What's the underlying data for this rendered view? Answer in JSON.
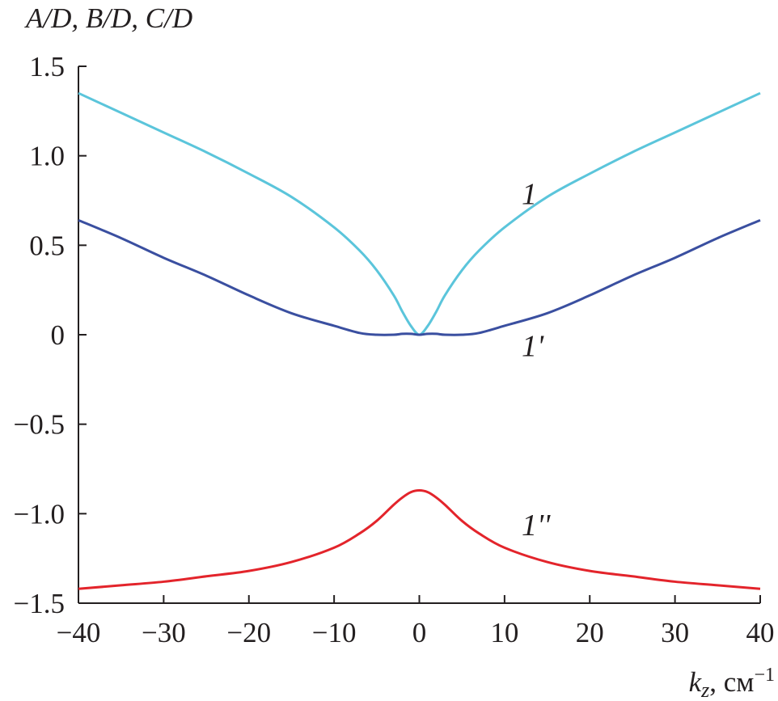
{
  "chart_data": {
    "type": "line",
    "title": "",
    "ylabel": "A/D, B/D, C/D",
    "xlabel": "k_z, см⁻¹",
    "xlabel_parts": {
      "var": "k",
      "sub": "z",
      "unit": ", см",
      "sup": "−1"
    },
    "xlim": [
      -40,
      40
    ],
    "ylim": [
      -1.5,
      1.5
    ],
    "xticks": [
      -40,
      -30,
      -20,
      -10,
      0,
      10,
      20,
      30,
      40
    ],
    "xtick_labels": [
      "−40",
      "−30",
      "−20",
      "−10",
      "0",
      "10",
      "20",
      "30",
      "40"
    ],
    "yticks": [
      -1.5,
      -1.0,
      -0.5,
      0,
      0.5,
      1.0,
      1.5
    ],
    "ytick_labels": [
      "−1.5",
      "−1.0",
      "−0.5",
      "0",
      "0.5",
      "1.0",
      "1.5"
    ],
    "grid": false,
    "legend": "none",
    "series": [
      {
        "name": "1",
        "color": "#5bc5db",
        "label_at": [
          12,
          0.73
        ],
        "x": [
          -40,
          -35,
          -30,
          -25,
          -20,
          -15,
          -10,
          -7,
          -5,
          -3,
          -2,
          -1,
          0,
          1,
          2,
          3,
          5,
          7,
          10,
          15,
          20,
          25,
          30,
          35,
          40
        ],
        "y": [
          1.35,
          1.24,
          1.13,
          1.02,
          0.9,
          0.77,
          0.6,
          0.47,
          0.36,
          0.22,
          0.13,
          0.05,
          0.0,
          0.05,
          0.13,
          0.22,
          0.36,
          0.47,
          0.6,
          0.77,
          0.9,
          1.02,
          1.13,
          1.24,
          1.35
        ]
      },
      {
        "name": "1'",
        "color": "#3a4fa0",
        "label_at": [
          12,
          -0.12
        ],
        "x": [
          -40,
          -35,
          -30,
          -25,
          -20,
          -15,
          -10,
          -7,
          -5,
          -3,
          -2,
          -1,
          0,
          1,
          2,
          3,
          5,
          7,
          10,
          15,
          20,
          25,
          30,
          35,
          40
        ],
        "y": [
          0.64,
          0.54,
          0.43,
          0.33,
          0.22,
          0.12,
          0.05,
          0.01,
          0.0,
          0.0,
          0.005,
          0.005,
          0.0,
          0.005,
          0.005,
          0.0,
          0.0,
          0.01,
          0.05,
          0.12,
          0.22,
          0.33,
          0.43,
          0.54,
          0.64
        ]
      },
      {
        "name": "1''",
        "color": "#e3242b",
        "label_at": [
          12,
          -1.12
        ],
        "x": [
          -40,
          -35,
          -30,
          -25,
          -20,
          -15,
          -10,
          -7,
          -5,
          -3,
          -2,
          -1,
          0,
          1,
          2,
          3,
          5,
          7,
          10,
          15,
          20,
          25,
          30,
          35,
          40
        ],
        "y": [
          -1.42,
          -1.4,
          -1.38,
          -1.35,
          -1.32,
          -1.27,
          -1.19,
          -1.11,
          -1.04,
          -0.95,
          -0.91,
          -0.88,
          -0.87,
          -0.88,
          -0.91,
          -0.95,
          -1.04,
          -1.11,
          -1.19,
          -1.27,
          -1.32,
          -1.35,
          -1.38,
          -1.4,
          -1.42
        ]
      }
    ]
  }
}
